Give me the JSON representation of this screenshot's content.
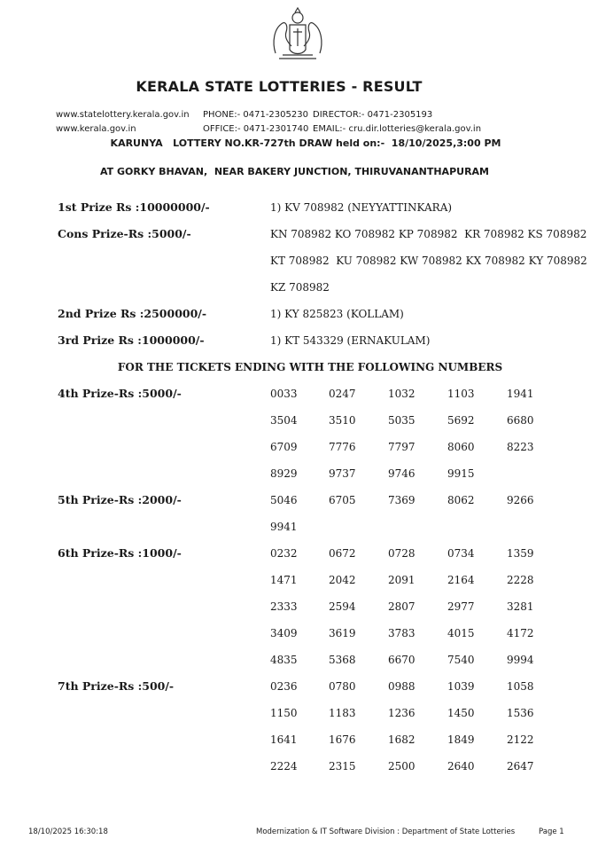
{
  "header": {
    "title": "KERALA STATE LOTTERIES - RESULT",
    "website1": "www.statelottery.kerala.gov.in",
    "website2": "www.kerala.gov.in",
    "phone": "PHONE:- 0471-2305230",
    "office": "OFFICE:- 0471-2301740",
    "director": "DIRECTOR:- 0471-2305193",
    "email": "EMAIL:- cru.dir.lotteries@kerala.gov.in",
    "draw_line": "KARUNYA   LOTTERY NO.KR-727th DRAW held on:-  18/10/2025,3:00 PM",
    "venue": "AT GORKY BHAVAN,  NEAR BAKERY JUNCTION, THIRUVANANTHAPURAM",
    "emblem": "Kerala state emblem"
  },
  "top_prizes": [
    {
      "label": "1st Prize Rs :10000000/-",
      "lines": [
        "1) KV 708982 (NEYYATTINKARA)"
      ]
    },
    {
      "label": "Cons Prize-Rs :5000/-",
      "lines": [
        "KN 708982 KO 708982 KP 708982  KR 708982 KS 708982",
        "KT 708982  KU 708982 KW 708982 KX 708982 KY 708982",
        "KZ 708982"
      ]
    },
    {
      "label": "2nd Prize Rs :2500000/-",
      "lines": [
        "1) KY 825823 (KOLLAM)"
      ]
    },
    {
      "label": "3rd Prize Rs :1000000/-",
      "lines": [
        "1) KT 543329 (ERNAKULAM)"
      ]
    }
  ],
  "section_heading": "FOR THE TICKETS ENDING WITH THE FOLLOWING NUMBERS",
  "ending_prizes": [
    {
      "label": "4th Prize-Rs :5000/-",
      "numbers": [
        "0033",
        "0247",
        "1032",
        "1103",
        "1941",
        "3504",
        "3510",
        "5035",
        "5692",
        "6680",
        "6709",
        "7776",
        "7797",
        "8060",
        "8223",
        "8929",
        "9737",
        "9746",
        "9915"
      ]
    },
    {
      "label": "5th Prize-Rs :2000/-",
      "numbers": [
        "5046",
        "6705",
        "7369",
        "8062",
        "9266",
        "9941"
      ]
    },
    {
      "label": "6th Prize-Rs :1000/-",
      "numbers": [
        "0232",
        "0672",
        "0728",
        "0734",
        "1359",
        "1471",
        "2042",
        "2091",
        "2164",
        "2228",
        "2333",
        "2594",
        "2807",
        "2977",
        "3281",
        "3409",
        "3619",
        "3783",
        "4015",
        "4172",
        "4835",
        "5368",
        "6670",
        "7540",
        "9994"
      ]
    },
    {
      "label": "7th Prize-Rs :500/-",
      "numbers": [
        "0236",
        "0780",
        "0988",
        "1039",
        "1058",
        "1150",
        "1183",
        "1236",
        "1450",
        "1536",
        "1641",
        "1676",
        "1682",
        "1849",
        "2122",
        "2224",
        "2315",
        "2500",
        "2640",
        "2647"
      ]
    }
  ],
  "footer": {
    "timestamp": "18/10/2025 16:30:18",
    "division": "Modernization & IT Software Division : Department of State Lotteries",
    "page": "Page 1"
  }
}
